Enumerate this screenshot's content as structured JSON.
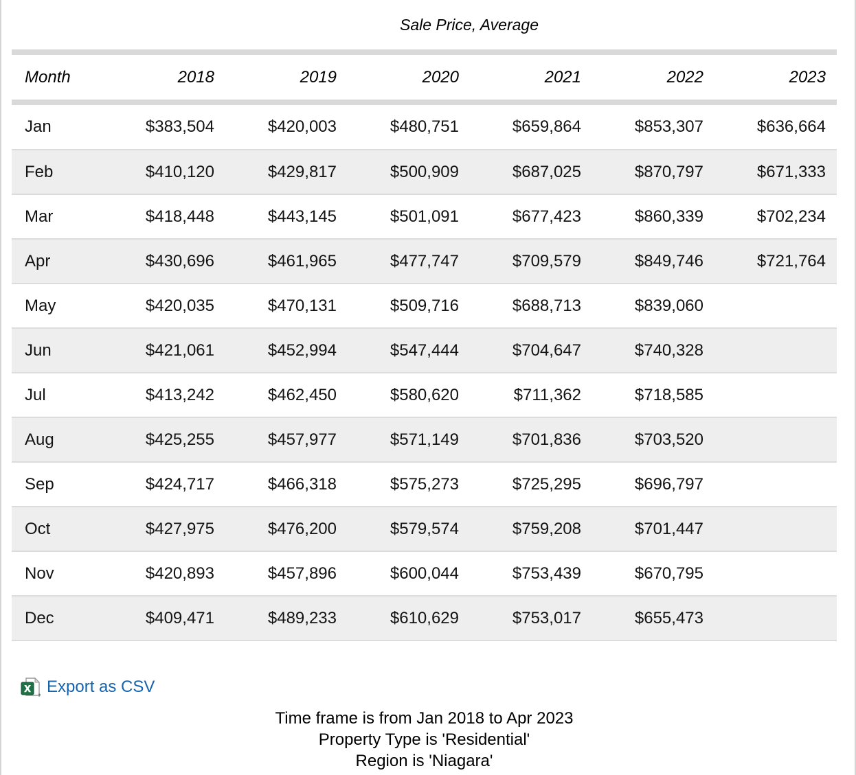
{
  "table": {
    "title": "Sale Price, Average",
    "columns": [
      "Month",
      "2018",
      "2019",
      "2020",
      "2021",
      "2022",
      "2023"
    ],
    "rows": [
      {
        "month": "Jan",
        "values": [
          "$383,504",
          "$420,003",
          "$480,751",
          "$659,864",
          "$853,307",
          "$636,664"
        ]
      },
      {
        "month": "Feb",
        "values": [
          "$410,120",
          "$429,817",
          "$500,909",
          "$687,025",
          "$870,797",
          "$671,333"
        ]
      },
      {
        "month": "Mar",
        "values": [
          "$418,448",
          "$443,145",
          "$501,091",
          "$677,423",
          "$860,339",
          "$702,234"
        ]
      },
      {
        "month": "Apr",
        "values": [
          "$430,696",
          "$461,965",
          "$477,747",
          "$709,579",
          "$849,746",
          "$721,764"
        ]
      },
      {
        "month": "May",
        "values": [
          "$420,035",
          "$470,131",
          "$509,716",
          "$688,713",
          "$839,060",
          ""
        ]
      },
      {
        "month": "Jun",
        "values": [
          "$421,061",
          "$452,994",
          "$547,444",
          "$704,647",
          "$740,328",
          ""
        ]
      },
      {
        "month": "Jul",
        "values": [
          "$413,242",
          "$462,450",
          "$580,620",
          "$711,362",
          "$718,585",
          ""
        ]
      },
      {
        "month": "Aug",
        "values": [
          "$425,255",
          "$457,977",
          "$571,149",
          "$701,836",
          "$703,520",
          ""
        ]
      },
      {
        "month": "Sep",
        "values": [
          "$424,717",
          "$466,318",
          "$575,273",
          "$725,295",
          "$696,797",
          ""
        ]
      },
      {
        "month": "Oct",
        "values": [
          "$427,975",
          "$476,200",
          "$579,574",
          "$759,208",
          "$701,447",
          ""
        ]
      },
      {
        "month": "Nov",
        "values": [
          "$420,893",
          "$457,896",
          "$600,044",
          "$753,439",
          "$670,795",
          ""
        ]
      },
      {
        "month": "Dec",
        "values": [
          "$409,471",
          "$489,233",
          "$610,629",
          "$753,017",
          "$655,473",
          ""
        ]
      }
    ]
  },
  "export": {
    "label": "Export as CSV",
    "icon": "excel-file-icon"
  },
  "footer": {
    "line1": "Time frame is from Jan 2018 to Apr 2023",
    "line2": "Property Type is 'Residential'",
    "line3": "Region is 'Niagara'"
  },
  "colors": {
    "link_blue": "#1564ad",
    "stripe_gray": "#eeeeee",
    "bar_gray": "#d9d9d9",
    "excel_green": "#1e7145"
  }
}
